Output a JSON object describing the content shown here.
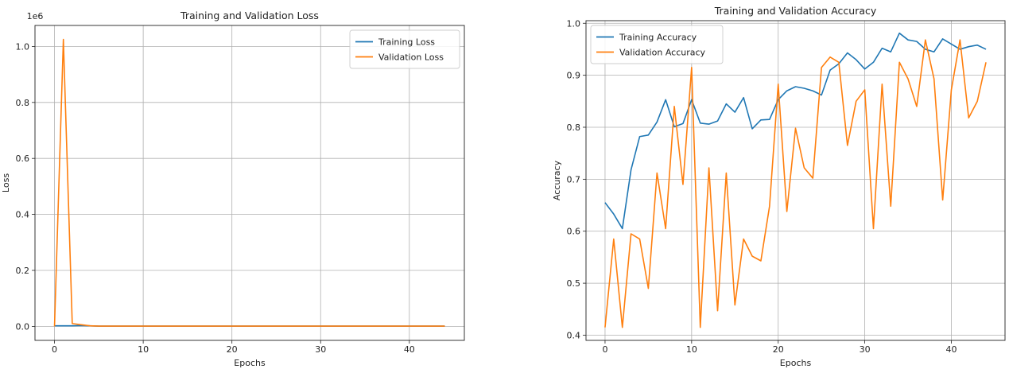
{
  "chart_data": [
    {
      "type": "line",
      "title": "Training and Validation Loss",
      "xlabel": "Epochs",
      "ylabel": "Loss",
      "offset_label": "1e6",
      "xlim": [
        -2.2,
        46.2
      ],
      "ylim": [
        -0.05,
        1.075
      ],
      "xticks": [
        0,
        10,
        20,
        30,
        40
      ],
      "xtick_labels": [
        "0",
        "10",
        "20",
        "30",
        "40"
      ],
      "yticks": [
        0.0,
        0.2,
        0.4,
        0.6,
        0.8,
        1.0
      ],
      "ytick_labels": [
        "0.0",
        "0.2",
        "0.4",
        "0.6",
        "0.8",
        "1.0"
      ],
      "grid": true,
      "legend_position": "upper right",
      "series": [
        {
          "name": "Training Loss",
          "color": "#1f77b4",
          "x": [
            0,
            1,
            2,
            3,
            4,
            5,
            6,
            7,
            8,
            9,
            10,
            11,
            12,
            13,
            14,
            15,
            16,
            17,
            18,
            19,
            20,
            21,
            22,
            23,
            24,
            25,
            26,
            27,
            28,
            29,
            30,
            31,
            32,
            33,
            34,
            35,
            36,
            37,
            38,
            39,
            40,
            41,
            42,
            43,
            44
          ],
          "values": [
            0.002,
            0.002,
            0.002,
            0.003,
            0.002,
            0.001,
            0.001,
            0.001,
            0.001,
            0.001,
            0.001,
            0.001,
            0.001,
            0.001,
            0.001,
            0.001,
            0.001,
            0.001,
            0.001,
            0.001,
            0.001,
            0.001,
            0.001,
            0.001,
            0.001,
            0.001,
            0.001,
            0.001,
            0.001,
            0.001,
            0.001,
            0.001,
            0.001,
            0.001,
            0.001,
            0.001,
            0.001,
            0.001,
            0.001,
            0.001,
            0.001,
            0.001,
            0.001,
            0.001,
            0.001
          ]
        },
        {
          "name": "Validation Loss",
          "color": "#ff7f0e",
          "x": [
            0,
            1,
            2,
            3,
            4,
            5,
            6,
            7,
            8,
            9,
            10,
            11,
            12,
            13,
            14,
            15,
            16,
            17,
            18,
            19,
            20,
            21,
            22,
            23,
            24,
            25,
            26,
            27,
            28,
            29,
            30,
            31,
            32,
            33,
            34,
            35,
            36,
            37,
            38,
            39,
            40,
            41,
            42,
            43,
            44
          ],
          "values": [
            0.0,
            1.025,
            0.01,
            0.006,
            0.002,
            0.001,
            0.001,
            0.001,
            0.001,
            0.001,
            0.001,
            0.001,
            0.001,
            0.001,
            0.001,
            0.001,
            0.001,
            0.001,
            0.001,
            0.001,
            0.001,
            0.001,
            0.001,
            0.001,
            0.001,
            0.001,
            0.001,
            0.001,
            0.001,
            0.001,
            0.001,
            0.001,
            0.001,
            0.001,
            0.001,
            0.001,
            0.001,
            0.001,
            0.001,
            0.001,
            0.001,
            0.001,
            0.001,
            0.001,
            0.001
          ]
        }
      ]
    },
    {
      "type": "line",
      "title": "Training and Validation Accuracy",
      "xlabel": "Epochs",
      "ylabel": "Accuracy",
      "offset_label": "",
      "xlim": [
        -2.2,
        46.2
      ],
      "ylim": [
        0.39,
        1.005
      ],
      "xticks": [
        0,
        10,
        20,
        30,
        40
      ],
      "xtick_labels": [
        "0",
        "10",
        "20",
        "30",
        "40"
      ],
      "yticks": [
        0.4,
        0.5,
        0.6,
        0.7,
        0.8,
        0.9,
        1.0
      ],
      "ytick_labels": [
        "0.4",
        "0.5",
        "0.6",
        "0.7",
        "0.8",
        "0.9",
        "1.0"
      ],
      "grid": true,
      "legend_position": "upper left",
      "series": [
        {
          "name": "Training Accuracy",
          "color": "#1f77b4",
          "x": [
            0,
            1,
            2,
            3,
            4,
            5,
            6,
            7,
            8,
            9,
            10,
            11,
            12,
            13,
            14,
            15,
            16,
            17,
            18,
            19,
            20,
            21,
            22,
            23,
            24,
            25,
            26,
            27,
            28,
            29,
            30,
            31,
            32,
            33,
            34,
            35,
            36,
            37,
            38,
            39,
            40,
            41,
            42,
            43,
            44
          ],
          "values": [
            0.655,
            0.633,
            0.605,
            0.718,
            0.782,
            0.785,
            0.81,
            0.853,
            0.801,
            0.807,
            0.853,
            0.808,
            0.806,
            0.812,
            0.845,
            0.829,
            0.857,
            0.797,
            0.814,
            0.815,
            0.853,
            0.87,
            0.878,
            0.875,
            0.87,
            0.862,
            0.91,
            0.922,
            0.943,
            0.93,
            0.912,
            0.925,
            0.952,
            0.945,
            0.981,
            0.968,
            0.965,
            0.95,
            0.945,
            0.97,
            0.96,
            0.95,
            0.955,
            0.958,
            0.95
          ]
        },
        {
          "name": "Validation Accuracy",
          "color": "#ff7f0e",
          "x": [
            0,
            1,
            2,
            3,
            4,
            5,
            6,
            7,
            8,
            9,
            10,
            11,
            12,
            13,
            14,
            15,
            16,
            17,
            18,
            19,
            20,
            21,
            22,
            23,
            24,
            25,
            26,
            27,
            28,
            29,
            30,
            31,
            32,
            33,
            34,
            35,
            36,
            37,
            38,
            39,
            40,
            41,
            42,
            43,
            44
          ],
          "values": [
            0.415,
            0.585,
            0.415,
            0.595,
            0.585,
            0.49,
            0.712,
            0.605,
            0.84,
            0.69,
            0.915,
            0.415,
            0.722,
            0.447,
            0.712,
            0.458,
            0.585,
            0.552,
            0.543,
            0.648,
            0.883,
            0.638,
            0.798,
            0.722,
            0.702,
            0.915,
            0.935,
            0.925,
            0.765,
            0.85,
            0.872,
            0.605,
            0.883,
            0.648,
            0.925,
            0.893,
            0.84,
            0.968,
            0.893,
            0.66,
            0.872,
            0.968,
            0.818,
            0.85,
            0.925
          ]
        }
      ]
    }
  ]
}
